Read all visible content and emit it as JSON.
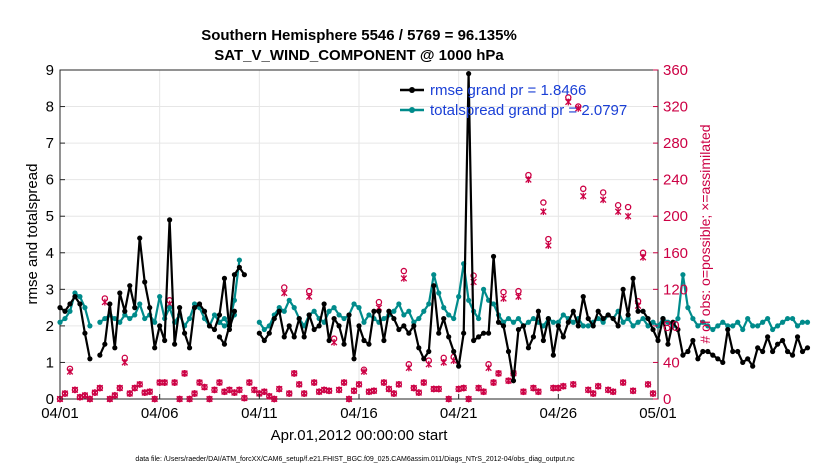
{
  "chart_data": {
    "type": "line",
    "title": "Southern Hemisphere 5546 / 5769 = 96.135%",
    "subtitle": "SAT_V_WIND_COMPONENT @ 1000 hPa",
    "xlabel": "Apr.01,2012 00:00:00 start",
    "ylabel": "rmse and totalspread",
    "y2label": "# of obs: o=possible; ×=assimilated",
    "footnote": "data file: /Users/raeder/DAI/ATM_forcXX/CAM6_setup/f.e21.FHIST_BGC.f09_025.CAM6assim.011/Diags_NTrS_2012-04/obs_diag_output.nc",
    "xlim": [
      0,
      30
    ],
    "ylim": [
      0,
      9
    ],
    "y2lim": [
      0,
      360
    ],
    "xticks": [
      0,
      5,
      10,
      15,
      20,
      25,
      30
    ],
    "xtick_labels": [
      "04/01",
      "04/06",
      "04/11",
      "04/16",
      "04/21",
      "04/26",
      "05/01"
    ],
    "yticks": [
      0,
      1,
      2,
      3,
      4,
      5,
      6,
      7,
      8,
      9
    ],
    "ytick_labels": [
      "0",
      "1",
      "2",
      "3",
      "4",
      "5",
      "6",
      "7",
      "8",
      "9"
    ],
    "y2ticks": [
      0,
      40,
      80,
      120,
      160,
      200,
      240,
      280,
      320,
      360
    ],
    "y2tick_labels": [
      "0",
      "40",
      "80",
      "120",
      "160",
      "200",
      "240",
      "280",
      "320",
      "360"
    ],
    "legend": [
      "rmse grand pr = 1.8466",
      "totalspread grand pr = 2.0797"
    ],
    "legend_position": "top-right",
    "colors": {
      "rmse": "#000000",
      "spread": "#008b8b",
      "obs": "#cc0044",
      "legend_text": "#1a3fd6"
    },
    "series": [
      {
        "name": "rmse",
        "segments": [
          {
            "x0": 0.0,
            "values": [
              2.5,
              2.4,
              2.6,
              2.8,
              2.6,
              1.8,
              1.1
            ]
          },
          {
            "x0": 2.0,
            "values": [
              1.2,
              1.5,
              2.6,
              1.4,
              2.9,
              2.4,
              3.1,
              2.5,
              4.4,
              3.2,
              2.5,
              1.4,
              2.0,
              1.6,
              4.9,
              1.5,
              2.5,
              1.8,
              1.4,
              2.5,
              2.6,
              2.4,
              2.0,
              1.9,
              2.3,
              3.3,
              1.9,
              2.4
            ]
          },
          {
            "x0": 8.0,
            "values": [
              1.7,
              1.5,
              2.0,
              3.4,
              3.6,
              3.4
            ]
          },
          {
            "x0": 10.0,
            "values": [
              1.8,
              1.6,
              1.8,
              2.2,
              2.4,
              1.7,
              2.0,
              1.7,
              2.2,
              1.7,
              2.3,
              1.9,
              2.0,
              2.6,
              1.6,
              2.2,
              2.0,
              1.5,
              2.3,
              1.1,
              2.0,
              1.6,
              1.5,
              2.4,
              2.4,
              1.6,
              2.4,
              2.2,
              1.9,
              2.0,
              1.8,
              2.0,
              1.4,
              1.1,
              1.3,
              3.1,
              1.8,
              2.2,
              1.7,
              1.3,
              0.9,
              1.8,
              8.9,
              1.6,
              1.7,
              1.8,
              1.8,
              3.9,
              2.1,
              2.0,
              1.3,
              0.5,
              1.9,
              2.0,
              1.4,
              1.7,
              2.4,
              1.6,
              2.2,
              1.2,
              2.0,
              1.7,
              2.1,
              2.4,
              2.0,
              2.8,
              2.2,
              2.0,
              2.4,
              2.2,
              2.3,
              2.2,
              2.0,
              3.0,
              2.3,
              3.3,
              2.4,
              2.4,
              2.2,
              1.9,
              1.6,
              2.2,
              1.5,
              2.1,
              1.9,
              1.2,
              1.3,
              1.6,
              1.1,
              1.3,
              1.3,
              1.2,
              1.1,
              1.0,
              1.9,
              1.3,
              1.3,
              1.0,
              1.1,
              0.9,
              1.4,
              1.3,
              1.7,
              1.3,
              1.5,
              1.6,
              1.3,
              1.2,
              1.7,
              1.3,
              1.4
            ]
          }
        ]
      },
      {
        "name": "totalspread",
        "segments": [
          {
            "x0": 0.0,
            "values": [
              2.1,
              2.2,
              2.4,
              2.9,
              2.8,
              2.5,
              2.0
            ]
          },
          {
            "x0": 2.0,
            "values": [
              2.1,
              2.2,
              2.3,
              2.2,
              2.1,
              2.3,
              2.2,
              2.3,
              2.6,
              2.2,
              2.3,
              2.1,
              2.8,
              2.2,
              2.5,
              2.1,
              2.3,
              2.0,
              2.2,
              2.6,
              2.5,
              2.2,
              2.0,
              2.3,
              2.1,
              2.2,
              2.0,
              2.3
            ]
          },
          {
            "x0": 8.0,
            "values": [
              2.1,
              2.0,
              2.1,
              2.7,
              3.8
            ]
          },
          {
            "x0": 10.0,
            "values": [
              2.1,
              1.9,
              2.0,
              2.3,
              2.5,
              2.4,
              2.7,
              2.5,
              2.2,
              2.0,
              2.3,
              2.4,
              2.2,
              2.1,
              2.4,
              2.5,
              2.3,
              2.2,
              2.3,
              2.6,
              2.5,
              2.1,
              2.3,
              2.2,
              2.1,
              2.2,
              2.3,
              2.4,
              2.6,
              2.3,
              2.4,
              2.1,
              2.2,
              2.4,
              2.6,
              3.4,
              2.9,
              2.5,
              2.3,
              2.2,
              2.8,
              3.7,
              2.7,
              2.4,
              2.2,
              3.0,
              2.7,
              2.6,
              2.3,
              2.1,
              2.2,
              2.1,
              2.2,
              2.0,
              2.1,
              2.2,
              2.1,
              2.0,
              2.2,
              2.1,
              2.1,
              2.3,
              2.2,
              2.1,
              2.2,
              2.0,
              2.0,
              2.1,
              2.2,
              2.1,
              2.3,
              2.2,
              2.4,
              2.1,
              2.2,
              2.0,
              2.1,
              2.2,
              2.0,
              2.1,
              2.0,
              2.2,
              2.1,
              2.0,
              2.2,
              3.4,
              2.5,
              2.2,
              2.0,
              2.1,
              2.0,
              1.9,
              2.0,
              2.1,
              2.0,
              2.0,
              2.1,
              1.9,
              2.2,
              2.0,
              2.0,
              2.1,
              2.2,
              1.9,
              2.0,
              2.1,
              2.2,
              2.2,
              2.0,
              2.1,
              2.1
            ]
          }
        ]
      },
      {
        "name": "obs_possible",
        "marker": "o",
        "x": [
          0.0,
          0.25,
          0.5,
          0.75,
          1.0,
          1.25,
          1.5,
          1.75,
          2.0,
          2.25,
          2.5,
          2.75,
          3.0,
          3.25,
          3.5,
          3.75,
          4.0,
          4.25,
          4.5,
          4.75,
          5.0,
          5.25,
          5.5,
          5.75,
          6.0,
          6.25,
          6.5,
          6.75,
          7.0,
          7.25,
          7.5,
          7.75,
          8.0,
          8.25,
          8.5,
          8.75,
          9.0,
          9.25,
          9.5,
          9.75,
          10.0,
          10.25,
          10.5,
          10.75,
          11.0,
          11.25,
          11.5,
          11.75,
          12.0,
          12.25,
          12.5,
          12.75,
          13.0,
          13.25,
          13.5,
          13.75,
          14.0,
          14.25,
          14.5,
          14.75,
          15.0,
          15.25,
          15.5,
          15.75,
          16.0,
          16.25,
          16.5,
          16.75,
          17.0,
          17.25,
          17.5,
          17.75,
          18.0,
          18.25,
          18.5,
          18.75,
          19.0,
          19.25,
          19.5,
          19.75,
          20.0,
          20.25,
          20.5,
          20.75,
          21.0,
          21.25,
          21.5,
          21.75,
          22.0,
          22.25,
          22.5,
          22.75,
          23.0,
          23.25,
          23.5,
          23.75,
          24.0,
          24.25,
          24.5,
          24.75,
          25.0,
          25.25,
          25.5,
          25.75,
          26.0,
          26.25,
          26.5,
          26.75,
          27.0,
          27.25,
          27.5,
          27.75,
          28.0,
          28.25,
          28.5,
          28.75,
          29.0,
          29.25,
          29.5,
          29.75
        ],
        "values": [
          0,
          6,
          33,
          10,
          2,
          4,
          0,
          7,
          12,
          110,
          0,
          4,
          12,
          45,
          6,
          12,
          16,
          7,
          8,
          0,
          18,
          18,
          108,
          18,
          0,
          28,
          0,
          6,
          18,
          13,
          0,
          10,
          18,
          8,
          10,
          7,
          10,
          1,
          18,
          10,
          6,
          8,
          3,
          0,
          11,
          122,
          6,
          28,
          16,
          6,
          118,
          18,
          8,
          10,
          9,
          66,
          10,
          18,
          0,
          9,
          16,
          32,
          8,
          9,
          106,
          18,
          11,
          6,
          16,
          140,
          38,
          12,
          7,
          18,
          42,
          11,
          11,
          45,
          0,
          46,
          11,
          12,
          0,
          135,
          12,
          8,
          38,
          18,
          28,
          117,
          20,
          28,
          118,
          8,
          245,
          12,
          8,
          215,
          175,
          12,
          12,
          14,
          330,
          16,
          320,
          230,
          10,
          6,
          14,
          226,
          10,
          8,
          212,
          18,
          210,
          9,
          107,
          160,
          16,
          6
        ]
      },
      {
        "name": "obs_assimilated",
        "marker": "x",
        "x": [
          0.0,
          0.25,
          0.5,
          0.75,
          1.0,
          1.25,
          1.5,
          1.75,
          2.0,
          2.25,
          2.5,
          2.75,
          3.0,
          3.25,
          3.5,
          3.75,
          4.0,
          4.25,
          4.5,
          4.75,
          5.0,
          5.25,
          5.5,
          5.75,
          6.0,
          6.25,
          6.5,
          6.75,
          7.0,
          7.25,
          7.5,
          7.75,
          8.0,
          8.25,
          8.5,
          8.75,
          9.0,
          9.25,
          9.5,
          9.75,
          10.0,
          10.25,
          10.5,
          10.75,
          11.0,
          11.25,
          11.5,
          11.75,
          12.0,
          12.25,
          12.5,
          12.75,
          13.0,
          13.25,
          13.5,
          13.75,
          14.0,
          14.25,
          14.5,
          14.75,
          15.0,
          15.25,
          15.5,
          15.75,
          16.0,
          16.25,
          16.5,
          16.75,
          17.0,
          17.25,
          17.5,
          17.75,
          18.0,
          18.25,
          18.5,
          18.75,
          19.0,
          19.25,
          19.5,
          19.75,
          20.0,
          20.25,
          20.5,
          20.75,
          21.0,
          21.25,
          21.5,
          21.75,
          22.0,
          22.25,
          22.5,
          22.75,
          23.0,
          23.25,
          23.5,
          23.75,
          24.0,
          24.25,
          24.5,
          24.75,
          25.0,
          25.25,
          25.5,
          25.75,
          26.0,
          26.25,
          26.5,
          26.75,
          27.0,
          27.25,
          27.5,
          27.75,
          28.0,
          28.25,
          28.5,
          28.75,
          29.0,
          29.25,
          29.5,
          29.75
        ],
        "values": [
          0,
          6,
          30,
          10,
          2,
          4,
          0,
          7,
          12,
          106,
          0,
          4,
          12,
          40,
          6,
          12,
          16,
          7,
          8,
          0,
          18,
          18,
          104,
          18,
          0,
          28,
          0,
          6,
          18,
          13,
          0,
          10,
          18,
          8,
          10,
          7,
          10,
          1,
          18,
          10,
          6,
          8,
          3,
          0,
          11,
          116,
          6,
          28,
          16,
          6,
          112,
          18,
          8,
          10,
          9,
          62,
          10,
          18,
          0,
          9,
          16,
          30,
          8,
          9,
          100,
          18,
          11,
          6,
          16,
          132,
          34,
          12,
          7,
          18,
          38,
          11,
          11,
          40,
          0,
          42,
          11,
          12,
          0,
          128,
          12,
          8,
          34,
          18,
          28,
          110,
          20,
          28,
          112,
          8,
          240,
          12,
          8,
          205,
          168,
          12,
          12,
          14,
          325,
          16,
          318,
          222,
          10,
          6,
          14,
          218,
          10,
          8,
          205,
          18,
          200,
          9,
          102,
          155,
          16,
          6
        ]
      }
    ]
  }
}
